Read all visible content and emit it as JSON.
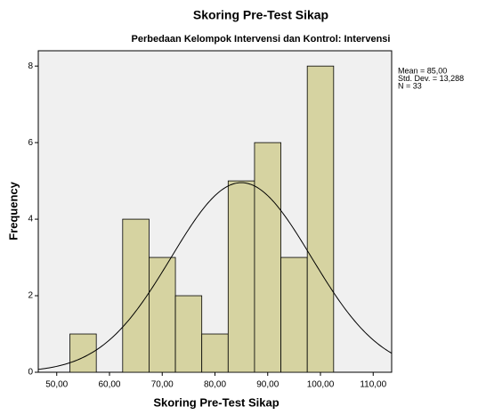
{
  "chart_data": {
    "type": "histogram",
    "title": "Skoring Pre-Test Sikap",
    "subtitle": "Perbedaan Kelompok Intervensi dan Kontrol: Intervensi",
    "x_label": "Skoring Pre-Test Sikap",
    "y_label": "Frequency",
    "bins": [
      52.5,
      57.5,
      62.5,
      67.5,
      72.5,
      77.5,
      82.5,
      87.5,
      92.5,
      97.5,
      102.5
    ],
    "counts": [
      1,
      0,
      4,
      3,
      2,
      1,
      5,
      6,
      3,
      8
    ],
    "color": "#d6d3a1",
    "xlim": [
      46.5,
      113.5
    ],
    "ylim": [
      0,
      8.4
    ],
    "xticks": [
      {
        "value": 50,
        "label": "50,00"
      },
      {
        "value": 60,
        "label": "60,00"
      },
      {
        "value": 70,
        "label": "70,00"
      },
      {
        "value": 80,
        "label": "80,00"
      },
      {
        "value": 90,
        "label": "90,00"
      },
      {
        "value": 100,
        "label": "100,00"
      },
      {
        "value": 110,
        "label": "110,00"
      }
    ],
    "yticks": [
      0,
      2,
      4,
      6,
      8
    ],
    "annotations": [
      "Mean = 85,00",
      "Std. Dev. = 13,288",
      "N = 33"
    ],
    "normal_curve": {
      "mean": 85,
      "std": 13.288,
      "n": 33
    }
  }
}
